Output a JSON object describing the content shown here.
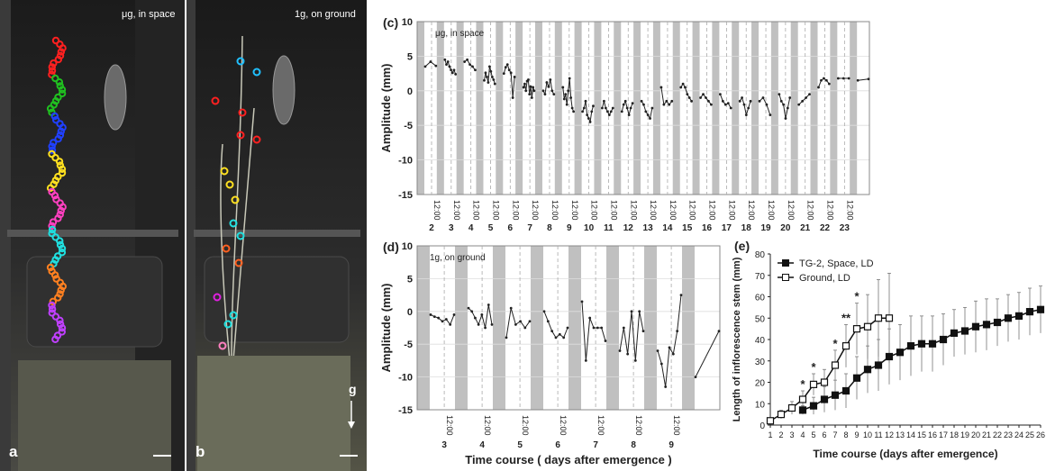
{
  "photos": {
    "a": {
      "letter": "a",
      "label": "μg, in space"
    },
    "b": {
      "letter": "b",
      "label": "1g, on ground",
      "gravity_label": "g"
    }
  },
  "colors": {
    "gray_band": "#c0c0c0",
    "line": "#222222",
    "grid": "#dddddd"
  },
  "chart_data": [
    {
      "id": "c",
      "panel": "(c)",
      "type": "line",
      "annotation": "μg, in space",
      "ylabel": "Amplitude (mm)",
      "ylim": [
        -15,
        10
      ],
      "yticks": [
        10,
        5,
        0,
        -5,
        -10,
        -15
      ],
      "day_ticks": [
        "2",
        "3",
        "4",
        "5",
        "6",
        "7",
        "8",
        "9",
        "10",
        "11",
        "12",
        "13",
        "14",
        "15",
        "16",
        "17",
        "18",
        "19",
        "20",
        "21",
        "22",
        "23"
      ],
      "time_tick_label": "12:00",
      "segments": [
        [
          3.5,
          4.2,
          3.6
        ],
        [
          4.5,
          3.8,
          4.2,
          3.5,
          3.0,
          2.6,
          3.0,
          2.4
        ],
        [
          4.2,
          4.5,
          3.8,
          3.5,
          3.0
        ],
        [
          1.5,
          2.6,
          2.0,
          1.2,
          3.5,
          2.8,
          2.0,
          1.6,
          1.0
        ],
        [
          2.5,
          3.4,
          3.8,
          3.0,
          2.6,
          -1.0,
          2.0
        ],
        [
          0.5,
          1.0,
          0.0,
          1.4,
          1.6,
          -0.5,
          0.6,
          -1.0,
          0.5,
          0.0
        ],
        [
          0.0,
          -0.5,
          1.2,
          0.6,
          1.6,
          0.0,
          -0.5
        ],
        [
          0.5,
          -1.2,
          -0.5,
          -2.0,
          0.0,
          1.8,
          -1.0,
          -2.5,
          -3.0
        ],
        [
          -3.0,
          -2.5,
          -1.5,
          -3.5,
          -4.0,
          -4.5,
          -3.0,
          -2.2
        ],
        [
          -2.5,
          -1.5,
          -2.5,
          -3.0,
          -3.5,
          -3.0,
          -2.5
        ],
        [
          -3.0,
          -2.0,
          -1.5,
          -2.5,
          -3.5,
          -2.5,
          -1.8
        ],
        [
          -1.5,
          -2.0,
          -3.0,
          -3.5,
          -4.0,
          -2.5
        ],
        [
          0.5,
          -2.0,
          -1.5,
          -2.0,
          -1.5
        ],
        [
          0.5,
          1.0,
          0.5,
          -0.5,
          -1.0,
          -1.5
        ],
        [
          -1.0,
          -0.5,
          -1.0,
          -1.5,
          -2.0
        ],
        [
          -0.5,
          -1.5,
          -2.0,
          -1.8,
          -2.5
        ],
        [
          -1.5,
          -1.0,
          -2.0,
          -3.5,
          -2.5,
          -1.5
        ],
        [
          -1.5,
          -1.0,
          -2.0,
          -3.5
        ],
        [
          -0.5,
          -1.5,
          -2.0,
          -4.0,
          -2.5,
          -1.0
        ],
        [
          -2.0,
          -1.5,
          -1.0,
          -0.5
        ],
        [
          0.5,
          1.5,
          1.8,
          1.5,
          1.0
        ],
        [
          1.8,
          1.8,
          1.8
        ],
        [
          1.5,
          1.7
        ]
      ]
    },
    {
      "id": "d",
      "panel": "(d)",
      "type": "line",
      "annotation": "1g, on ground",
      "ylabel": "Amplitude (mm)",
      "xlabel": "Time course ( days after emergence )",
      "ylim": [
        -15,
        10
      ],
      "yticks": [
        10,
        5,
        0,
        -5,
        -10,
        -15
      ],
      "day_ticks": [
        "3",
        "4",
        "5",
        "6",
        "7",
        "8",
        "9"
      ],
      "time_tick_label": "12:00",
      "segments": [
        [
          -0.5,
          -0.8,
          -1.0,
          -1.5,
          -1.2,
          -2.0,
          -0.5
        ],
        [
          0.5,
          0.0,
          -1.0,
          -2.0,
          -0.5,
          -2.5,
          1.0,
          -2.0
        ],
        [
          -4.0,
          0.5,
          -2.0,
          -1.5,
          -2.5,
          -1.5
        ],
        [
          0.0,
          -1.5,
          -3.0,
          -4.0,
          -3.5,
          -4.0,
          -2.5
        ],
        [
          1.5,
          -7.5,
          -1.0,
          -2.5,
          -2.5,
          -2.5,
          -4.5
        ],
        [
          -6.0,
          -2.5,
          -6.5,
          0.0,
          -7.5,
          0.0,
          -3.0
        ],
        [
          -6.0,
          -8.0,
          -11.5,
          -5.5,
          -6.5,
          -3.0,
          2.5
        ],
        [
          -10.0,
          -3.0
        ]
      ]
    },
    {
      "id": "e",
      "panel": "(e)",
      "type": "line",
      "xlabel": "Time  course (days after emergence)",
      "ylabel": "Length of inflorescence stem (mm)",
      "ylim": [
        0,
        80
      ],
      "yticks": [
        0,
        10,
        20,
        30,
        40,
        50,
        60,
        70,
        80
      ],
      "xlim": [
        1,
        26
      ],
      "series": [
        {
          "name": "TG-2, Space, LD",
          "marker": "filled-square",
          "x": [
            4,
            5,
            6,
            7,
            8,
            9,
            10,
            11,
            12,
            13,
            14,
            15,
            16,
            17,
            18,
            19,
            20,
            21,
            22,
            23,
            24,
            25,
            26
          ],
          "values": [
            7,
            9,
            12,
            14,
            16,
            22,
            26,
            28,
            32,
            34,
            37,
            38,
            38,
            40,
            43,
            44,
            46,
            47,
            48,
            50,
            51,
            53,
            54
          ],
          "errors": [
            2,
            4,
            6,
            7,
            8,
            10,
            11,
            12,
            13,
            13,
            14,
            13,
            13,
            12,
            11,
            11,
            12,
            12,
            11,
            11,
            11,
            11,
            11
          ]
        },
        {
          "name": "Ground, LD",
          "marker": "open-square",
          "x": [
            1,
            2,
            3,
            4,
            5,
            6,
            7,
            8,
            9,
            10,
            11,
            12
          ],
          "values": [
            2,
            5,
            8,
            12,
            19,
            20,
            28,
            37,
            45,
            46,
            50,
            50
          ],
          "errors": [
            1,
            2,
            3,
            4,
            5,
            6,
            7,
            10,
            12,
            15,
            18,
            21
          ]
        }
      ],
      "significance_marks": [
        {
          "x": 4,
          "text": "*"
        },
        {
          "x": 5,
          "text": "*"
        },
        {
          "x": 7,
          "text": "*"
        },
        {
          "x": 8,
          "text": "**"
        },
        {
          "x": 9,
          "text": "*"
        }
      ],
      "x_tick_labels": [
        "1",
        "2",
        "3",
        "4",
        "5",
        "6",
        "7",
        "8",
        "9",
        "10",
        "11",
        "12",
        "13",
        "14",
        "15",
        "16",
        "17",
        "18",
        "19",
        "20",
        "21",
        "22",
        "23",
        "24",
        "25",
        "26"
      ]
    }
  ]
}
